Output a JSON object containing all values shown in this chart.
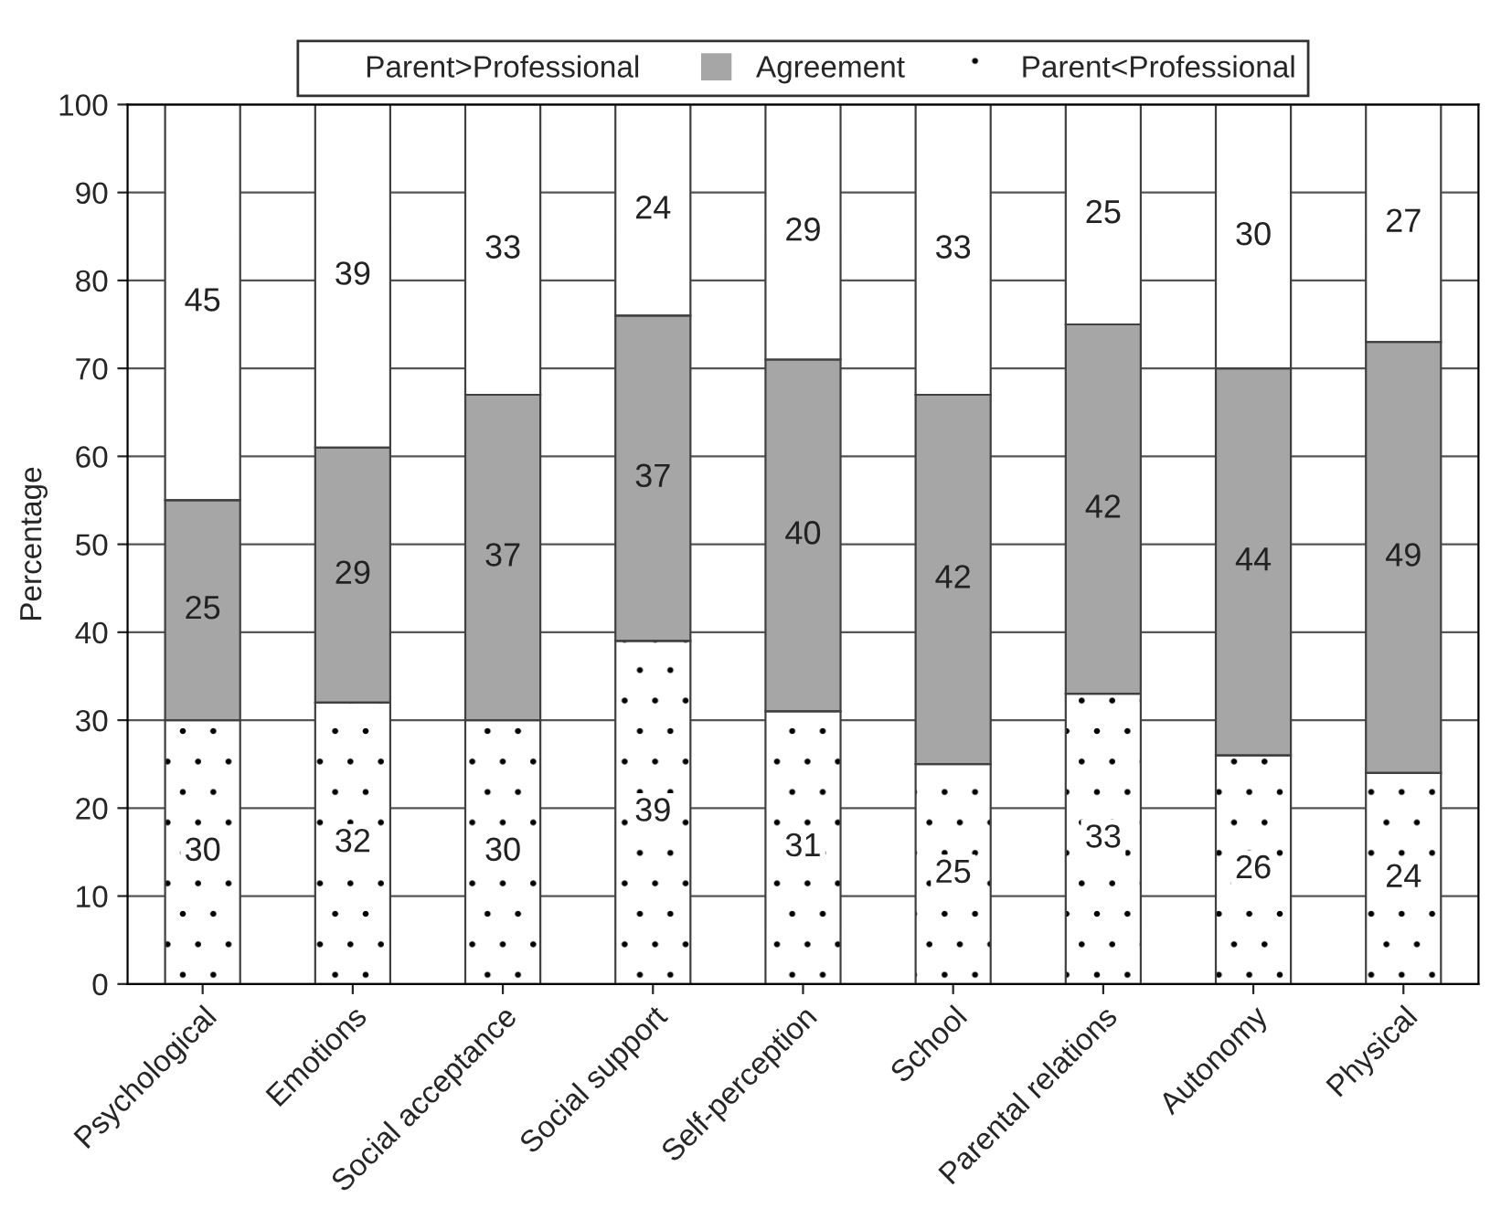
{
  "chart_data": {
    "type": "bar",
    "stacked": true,
    "ylabel": "Percentage",
    "categories": [
      "Psychological",
      "Emotions",
      "Social acceptance",
      "Social support",
      "Self-perception",
      "School",
      "Parental relations",
      "Autonomy",
      "Physical"
    ],
    "series": [
      {
        "name": "Parent<Professional",
        "color": "#ffffff",
        "values": [
          30,
          32,
          30,
          39,
          31,
          25,
          33,
          26,
          24
        ]
      },
      {
        "name": "Agreement",
        "color": "#a6a6a6",
        "values": [
          25,
          29,
          37,
          37,
          40,
          42,
          42,
          44,
          49
        ]
      },
      {
        "name": "Parent>Professional",
        "color": "#ffffff",
        "values": [
          45,
          39,
          33,
          24,
          29,
          33,
          25,
          30,
          27
        ]
      }
    ],
    "ylim": [
      0,
      100
    ],
    "yticks": [
      0,
      10,
      20,
      30,
      40,
      50,
      60,
      70,
      80,
      90,
      100
    ],
    "grid": "y",
    "legend": "top",
    "data_labels": true
  }
}
